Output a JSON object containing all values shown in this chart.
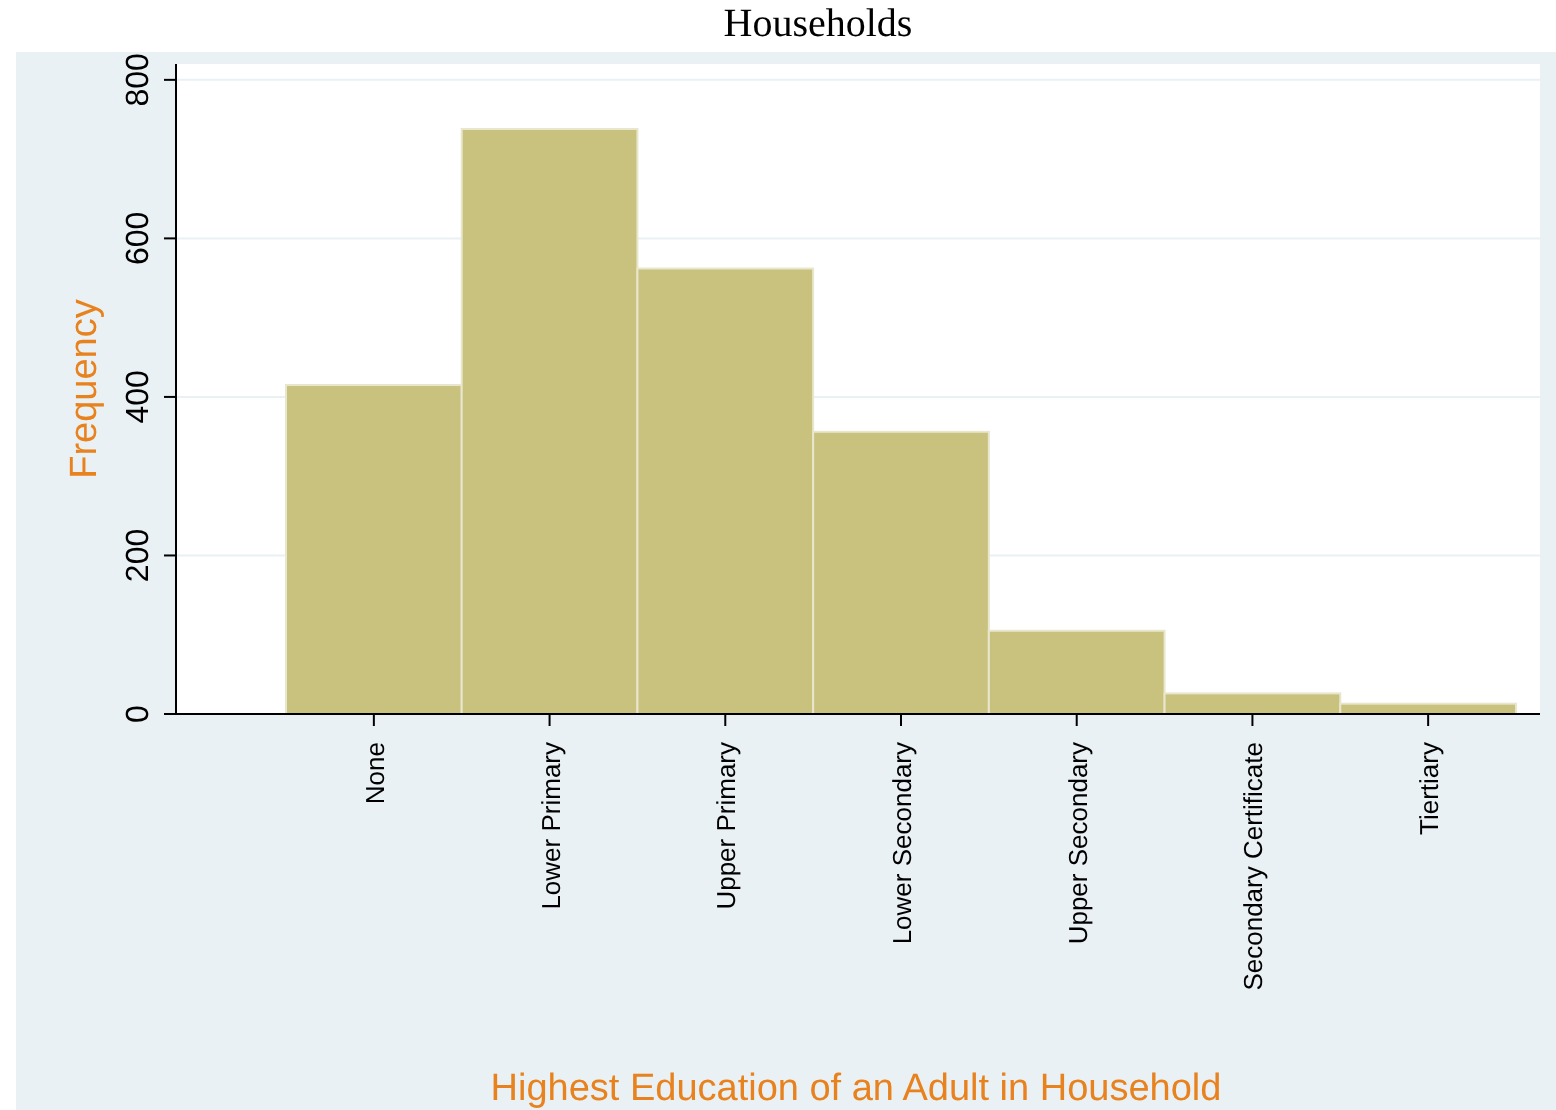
{
  "chart_data": {
    "type": "bar",
    "title": "Households",
    "xlabel": "Highest Education of an Adult in Household",
    "ylabel": "Frequency",
    "categories": [
      "None",
      "Lower Primary",
      "Upper Primary",
      "Lower Secondary",
      "Upper Secondary",
      "Secondary Certificate",
      "Tiertiary"
    ],
    "values": [
      415,
      738,
      562,
      356,
      105,
      26,
      13
    ],
    "color": "#c9c27f",
    "ylim": [
      0,
      820
    ],
    "yticks": [
      0,
      200,
      400,
      600,
      800
    ],
    "grid": "y"
  }
}
